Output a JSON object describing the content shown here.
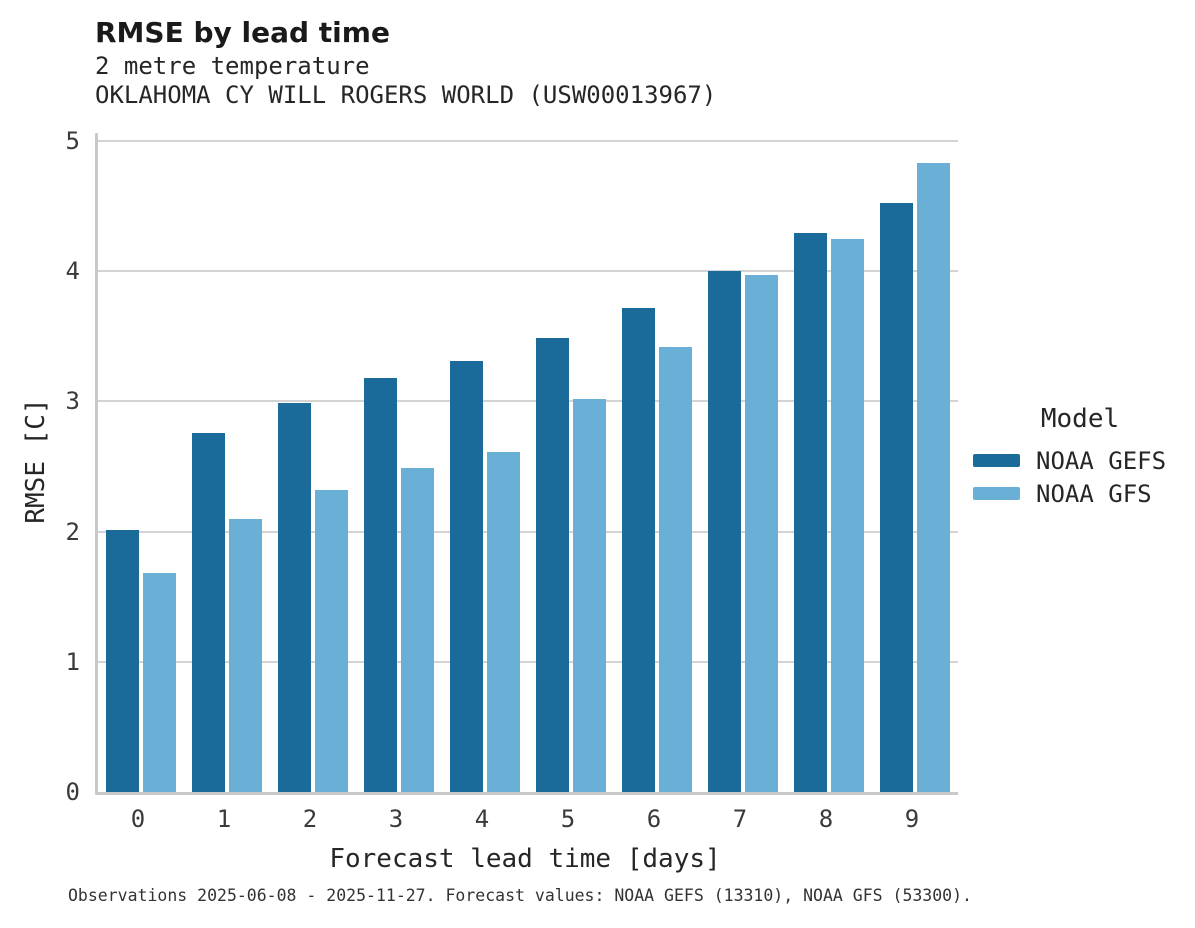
{
  "chart_data": {
    "type": "bar",
    "title": "RMSE by lead time",
    "subtitle_variable": "2 metre temperature",
    "subtitle_station": "OKLAHOMA CY WILL ROGERS WORLD (USW00013967)",
    "xlabel": "Forecast lead time [days]",
    "ylabel": "RMSE [C]",
    "categories": [
      "0",
      "1",
      "2",
      "3",
      "4",
      "5",
      "6",
      "7",
      "8",
      "9"
    ],
    "series": [
      {
        "name": "NOAA GEFS",
        "color": "#1a6b99",
        "values": [
          2.01,
          2.76,
          2.99,
          3.18,
          3.31,
          3.49,
          3.72,
          4.0,
          4.29,
          4.52
        ]
      },
      {
        "name": "NOAA GFS",
        "color": "#69afd6",
        "values": [
          1.68,
          2.1,
          2.32,
          2.49,
          2.61,
          3.02,
          3.42,
          3.97,
          4.25,
          4.83
        ]
      }
    ],
    "ylim": [
      0,
      5
    ],
    "yticks": [
      0,
      1,
      2,
      3,
      4,
      5
    ],
    "grid": "horizontal",
    "legend": {
      "title": "Model",
      "position": "right-center"
    }
  },
  "footer": {
    "text": "Observations 2025-06-08 - 2025-11-27. Forecast values: NOAA GEFS (13310), NOAA GFS (53300)."
  },
  "colors": {
    "gridline": "#d4d4d4",
    "spine": "#c9c9c9",
    "gefs_bar": "#1a6b99",
    "gfs_bar": "#69afd6"
  }
}
